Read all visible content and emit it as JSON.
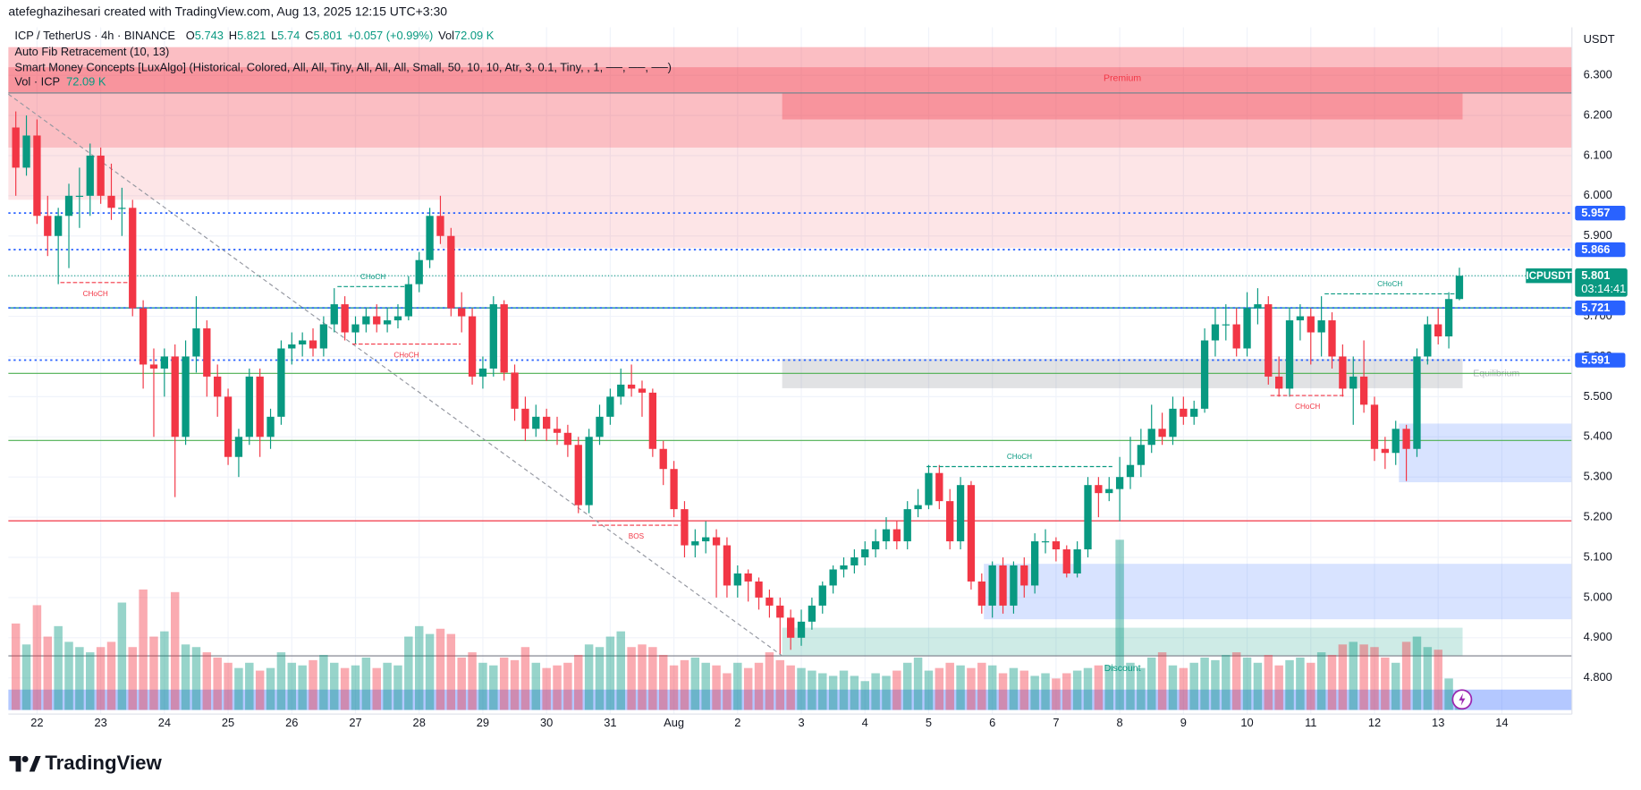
{
  "header": {
    "attribution": "atefeghazihesari created with TradingView.com, Aug 13, 2025 12:15 UTC+3:30",
    "currency": "USDT"
  },
  "legend": {
    "symbol": "ICP / TetherUS · 4h · BINANCE",
    "fields": [
      {
        "label": "O",
        "value": 5.743
      },
      {
        "label": "H",
        "value": 5.821
      },
      {
        "label": "L",
        "value": 5.74
      },
      {
        "label": "C",
        "value": 5.801
      }
    ],
    "change": "+0.057 (+0.99%)",
    "volume": {
      "label": "Vol",
      "value": "72.09 K"
    }
  },
  "indicators": {
    "fib": "Auto Fib Retracement (10, 13)",
    "smc": "Smart Money Concepts [LuxAlgo] (Historical, Colored, All, All, Tiny, All, All, All, Small, 50, 10, 10, Atr, 3, 0.1, Tiny, , 1, ──, ──, ──)",
    "vol": {
      "label": "Vol · ICP",
      "value": "72.09 K"
    }
  },
  "footer": {
    "brand": "TradingView"
  },
  "chart_data": {
    "type": "candlestick",
    "up_color": "#089981",
    "down_color": "#f23645",
    "volume_up_color": "rgba(8,153,129,0.42)",
    "volume_down_color": "rgba(242,54,69,0.42)",
    "grid": true,
    "xlim": [
      -0.7,
      146.6
    ],
    "ylim": [
      4.71,
      6.37
    ],
    "volume_lim": [
      0,
      700
    ],
    "yticks": [
      {
        "value": 4.8,
        "label": "4.800"
      },
      {
        "value": 4.9,
        "label": "4.900"
      },
      {
        "value": 5.0,
        "label": "5.000"
      },
      {
        "value": 5.1,
        "label": "5.100"
      },
      {
        "value": 5.2,
        "label": "5.200"
      },
      {
        "value": 5.3,
        "label": "5.300"
      },
      {
        "value": 5.4,
        "label": "5.400"
      },
      {
        "value": 5.5,
        "label": "5.500"
      },
      {
        "value": 5.6,
        "label": "5.600"
      },
      {
        "value": 5.7,
        "label": "5.700"
      },
      {
        "value": 5.8,
        "label": "5.800"
      },
      {
        "value": 5.9,
        "label": "5.900"
      },
      {
        "value": 6.0,
        "label": "6.000"
      },
      {
        "value": 6.1,
        "label": "6.100"
      },
      {
        "value": 6.2,
        "label": "6.200"
      },
      {
        "value": 6.3,
        "label": "6.300"
      }
    ],
    "xticks": [
      {
        "value": 2,
        "label": "22"
      },
      {
        "value": 8,
        "label": "23"
      },
      {
        "value": 14,
        "label": "24"
      },
      {
        "value": 20,
        "label": "25"
      },
      {
        "value": 26,
        "label": "26"
      },
      {
        "value": 32,
        "label": "27"
      },
      {
        "value": 38,
        "label": "28"
      },
      {
        "value": 44,
        "label": "29"
      },
      {
        "value": 50,
        "label": "30"
      },
      {
        "value": 56,
        "label": "31"
      },
      {
        "value": 62,
        "label": "Aug"
      },
      {
        "value": 68,
        "label": "2"
      },
      {
        "value": 74,
        "label": "3"
      },
      {
        "value": 80,
        "label": "4"
      },
      {
        "value": 86,
        "label": "5"
      },
      {
        "value": 92,
        "label": "6"
      },
      {
        "value": 98,
        "label": "7"
      },
      {
        "value": 104,
        "label": "8"
      },
      {
        "value": 110,
        "label": "9"
      },
      {
        "value": 116,
        "label": "10"
      },
      {
        "value": 122,
        "label": "11"
      },
      {
        "value": 128,
        "label": "12"
      },
      {
        "value": 134,
        "label": "13"
      },
      {
        "value": 140,
        "label": "14"
      }
    ],
    "ohlc": [
      [
        6.17,
        6.21,
        6.0,
        6.07
      ],
      [
        6.07,
        6.2,
        6.05,
        6.15
      ],
      [
        6.15,
        6.19,
        5.93,
        5.95
      ],
      [
        5.95,
        6.0,
        5.85,
        5.9
      ],
      [
        5.9,
        5.97,
        5.78,
        5.95
      ],
      [
        5.95,
        6.03,
        5.82,
        6.0
      ],
      [
        6.0,
        6.07,
        5.92,
        6.0
      ],
      [
        6.0,
        6.13,
        5.95,
        6.1
      ],
      [
        6.1,
        6.12,
        5.98,
        6.0
      ],
      [
        6.0,
        6.08,
        5.94,
        5.97
      ],
      [
        5.97,
        6.02,
        5.9,
        5.97
      ],
      [
        5.97,
        5.99,
        5.7,
        5.72
      ],
      [
        5.72,
        5.74,
        5.52,
        5.58
      ],
      [
        5.58,
        5.62,
        5.4,
        5.57
      ],
      [
        5.57,
        5.62,
        5.5,
        5.6
      ],
      [
        5.6,
        5.63,
        5.25,
        5.4
      ],
      [
        5.4,
        5.64,
        5.38,
        5.6
      ],
      [
        5.6,
        5.75,
        5.56,
        5.67
      ],
      [
        5.67,
        5.69,
        5.5,
        5.55
      ],
      [
        5.55,
        5.58,
        5.45,
        5.5
      ],
      [
        5.5,
        5.52,
        5.33,
        5.35
      ],
      [
        5.35,
        5.42,
        5.3,
        5.4
      ],
      [
        5.4,
        5.57,
        5.38,
        5.55
      ],
      [
        5.55,
        5.57,
        5.35,
        5.4
      ],
      [
        5.4,
        5.47,
        5.37,
        5.45
      ],
      [
        5.45,
        5.64,
        5.43,
        5.62
      ],
      [
        5.62,
        5.66,
        5.58,
        5.63
      ],
      [
        5.63,
        5.66,
        5.6,
        5.64
      ],
      [
        5.64,
        5.67,
        5.6,
        5.62
      ],
      [
        5.62,
        5.7,
        5.6,
        5.68
      ],
      [
        5.68,
        5.77,
        5.66,
        5.73
      ],
      [
        5.73,
        5.75,
        5.64,
        5.66
      ],
      [
        5.66,
        5.7,
        5.63,
        5.68
      ],
      [
        5.68,
        5.72,
        5.66,
        5.7
      ],
      [
        5.7,
        5.73,
        5.66,
        5.68
      ],
      [
        5.68,
        5.72,
        5.66,
        5.69
      ],
      [
        5.69,
        5.73,
        5.67,
        5.7
      ],
      [
        5.7,
        5.8,
        5.69,
        5.78
      ],
      [
        5.78,
        5.86,
        5.76,
        5.84
      ],
      [
        5.84,
        5.97,
        5.82,
        5.95
      ],
      [
        5.95,
        6.0,
        5.88,
        5.9
      ],
      [
        5.9,
        5.92,
        5.7,
        5.72
      ],
      [
        5.72,
        5.76,
        5.66,
        5.7
      ],
      [
        5.7,
        5.72,
        5.53,
        5.55
      ],
      [
        5.55,
        5.6,
        5.52,
        5.57
      ],
      [
        5.57,
        5.75,
        5.55,
        5.73
      ],
      [
        5.73,
        5.74,
        5.54,
        5.56
      ],
      [
        5.56,
        5.58,
        5.44,
        5.47
      ],
      [
        5.47,
        5.5,
        5.39,
        5.42
      ],
      [
        5.42,
        5.48,
        5.4,
        5.45
      ],
      [
        5.45,
        5.47,
        5.39,
        5.42
      ],
      [
        5.42,
        5.45,
        5.38,
        5.41
      ],
      [
        5.41,
        5.43,
        5.35,
        5.38
      ],
      [
        5.38,
        5.4,
        5.21,
        5.23
      ],
      [
        5.23,
        5.42,
        5.21,
        5.4
      ],
      [
        5.4,
        5.48,
        5.38,
        5.45
      ],
      [
        5.45,
        5.52,
        5.43,
        5.5
      ],
      [
        5.5,
        5.57,
        5.48,
        5.53
      ],
      [
        5.53,
        5.58,
        5.5,
        5.52
      ],
      [
        5.52,
        5.54,
        5.45,
        5.51
      ],
      [
        5.51,
        5.52,
        5.35,
        5.37
      ],
      [
        5.37,
        5.39,
        5.28,
        5.32
      ],
      [
        5.32,
        5.34,
        5.2,
        5.22
      ],
      [
        5.22,
        5.24,
        5.1,
        5.13
      ],
      [
        5.13,
        5.17,
        5.1,
        5.14
      ],
      [
        5.14,
        5.19,
        5.11,
        5.15
      ],
      [
        5.15,
        5.17,
        5.0,
        5.13
      ],
      [
        5.13,
        5.15,
        5.0,
        5.03
      ],
      [
        5.03,
        5.08,
        5.0,
        5.06
      ],
      [
        5.06,
        5.07,
        4.99,
        5.04
      ],
      [
        5.04,
        5.05,
        4.97,
        5.0
      ],
      [
        5.0,
        5.02,
        4.95,
        4.98
      ],
      [
        4.98,
        5.0,
        4.86,
        4.95
      ],
      [
        4.95,
        4.97,
        4.87,
        4.9
      ],
      [
        4.9,
        4.97,
        4.88,
        4.94
      ],
      [
        4.94,
        5.0,
        4.92,
        4.98
      ],
      [
        4.98,
        5.04,
        4.96,
        5.03
      ],
      [
        5.03,
        5.08,
        5.01,
        5.07
      ],
      [
        5.07,
        5.1,
        5.05,
        5.08
      ],
      [
        5.08,
        5.12,
        5.06,
        5.1
      ],
      [
        5.1,
        5.14,
        5.08,
        5.12
      ],
      [
        5.12,
        5.17,
        5.1,
        5.14
      ],
      [
        5.14,
        5.2,
        5.12,
        5.17
      ],
      [
        5.17,
        5.19,
        5.12,
        5.14
      ],
      [
        5.14,
        5.24,
        5.12,
        5.22
      ],
      [
        5.22,
        5.27,
        5.2,
        5.23
      ],
      [
        5.23,
        5.33,
        5.22,
        5.31
      ],
      [
        5.31,
        5.33,
        5.22,
        5.24
      ],
      [
        5.24,
        5.27,
        5.12,
        5.14
      ],
      [
        5.14,
        5.3,
        5.12,
        5.28
      ],
      [
        5.28,
        5.29,
        5.02,
        5.04
      ],
      [
        5.04,
        5.06,
        4.96,
        4.98
      ],
      [
        4.98,
        5.09,
        4.95,
        5.08
      ],
      [
        5.08,
        5.1,
        4.96,
        4.98
      ],
      [
        4.98,
        5.09,
        4.96,
        5.08
      ],
      [
        5.08,
        5.1,
        5.0,
        5.03
      ],
      [
        5.03,
        5.16,
        5.01,
        5.14
      ],
      [
        5.14,
        5.17,
        5.11,
        5.14
      ],
      [
        5.14,
        5.15,
        5.09,
        5.12
      ],
      [
        5.12,
        5.13,
        5.05,
        5.06
      ],
      [
        5.06,
        5.14,
        5.05,
        5.12
      ],
      [
        5.12,
        5.3,
        5.1,
        5.28
      ],
      [
        5.28,
        5.3,
        5.2,
        5.26
      ],
      [
        5.26,
        5.3,
        5.24,
        5.27
      ],
      [
        5.27,
        5.35,
        5.19,
        5.3
      ],
      [
        5.3,
        5.4,
        5.27,
        5.33
      ],
      [
        5.33,
        5.42,
        5.3,
        5.38
      ],
      [
        5.38,
        5.48,
        5.36,
        5.42
      ],
      [
        5.42,
        5.46,
        5.38,
        5.4
      ],
      [
        5.4,
        5.5,
        5.38,
        5.47
      ],
      [
        5.47,
        5.5,
        5.43,
        5.45
      ],
      [
        5.45,
        5.49,
        5.43,
        5.47
      ],
      [
        5.47,
        5.67,
        5.46,
        5.64
      ],
      [
        5.64,
        5.72,
        5.6,
        5.68
      ],
      [
        5.68,
        5.73,
        5.64,
        5.68
      ],
      [
        5.68,
        5.72,
        5.6,
        5.62
      ],
      [
        5.62,
        5.76,
        5.6,
        5.72
      ],
      [
        5.72,
        5.77,
        5.68,
        5.73
      ],
      [
        5.73,
        5.75,
        5.53,
        5.55
      ],
      [
        5.55,
        5.6,
        5.5,
        5.52
      ],
      [
        5.52,
        5.72,
        5.5,
        5.69
      ],
      [
        5.69,
        5.73,
        5.64,
        5.7
      ],
      [
        5.7,
        5.72,
        5.58,
        5.66
      ],
      [
        5.66,
        5.75,
        5.6,
        5.69
      ],
      [
        5.69,
        5.71,
        5.57,
        5.6
      ],
      [
        5.6,
        5.63,
        5.5,
        5.52
      ],
      [
        5.52,
        5.6,
        5.43,
        5.55
      ],
      [
        5.55,
        5.64,
        5.46,
        5.48
      ],
      [
        5.48,
        5.5,
        5.34,
        5.37
      ],
      [
        5.37,
        5.4,
        5.32,
        5.36
      ],
      [
        5.36,
        5.44,
        5.33,
        5.42
      ],
      [
        5.42,
        5.43,
        5.29,
        5.37
      ],
      [
        5.37,
        5.62,
        5.35,
        5.6
      ],
      [
        5.6,
        5.7,
        5.58,
        5.68
      ],
      [
        5.68,
        5.72,
        5.63,
        5.65
      ],
      [
        5.65,
        5.76,
        5.62,
        5.743
      ],
      [
        5.743,
        5.821,
        5.74,
        5.801
      ]
    ],
    "volume": [
      330,
      250,
      400,
      280,
      320,
      260,
      240,
      220,
      240,
      260,
      410,
      240,
      460,
      280,
      300,
      450,
      250,
      240,
      220,
      200,
      180,
      160,
      180,
      150,
      160,
      220,
      180,
      170,
      190,
      210,
      180,
      160,
      170,
      200,
      160,
      180,
      170,
      280,
      320,
      290,
      310,
      290,
      200,
      220,
      180,
      170,
      200,
      190,
      240,
      180,
      160,
      170,
      180,
      210,
      250,
      240,
      280,
      300,
      240,
      250,
      240,
      210,
      170,
      190,
      200,
      180,
      170,
      140,
      180,
      160,
      180,
      220,
      190,
      170,
      160,
      150,
      140,
      130,
      150,
      130,
      110,
      140,
      130,
      150,
      180,
      200,
      150,
      160,
      180,
      170,
      160,
      180,
      170,
      140,
      160,
      150,
      130,
      140,
      120,
      140,
      150,
      160,
      170,
      170,
      650,
      180,
      160,
      200,
      220,
      170,
      160,
      180,
      200,
      190,
      210,
      220,
      200,
      180,
      210,
      170,
      190,
      200,
      180,
      220,
      210,
      250,
      260,
      250,
      240,
      200,
      180,
      260,
      280,
      240,
      230,
      120,
      72.09
    ],
    "zones": [
      {
        "from": -0.7,
        "to": 146.6,
        "low": 6.12,
        "high": 6.37,
        "color": "rgba(242,54,69,0.32)"
      },
      {
        "from": -0.7,
        "to": 146.6,
        "low": 6.258,
        "high": 6.32,
        "color": "rgba(242,54,69,0.3)"
      },
      {
        "from": -0.7,
        "to": 146.6,
        "low": 5.99,
        "high": 6.12,
        "color": "rgba(242,54,69,0.13)"
      },
      {
        "from": 40,
        "to": 146.6,
        "low": 5.87,
        "high": 5.99,
        "color": "rgba(242,54,69,0.13)"
      },
      {
        "from": 72.2,
        "to": 136.3,
        "low": 6.19,
        "high": 6.256,
        "color": "rgba(242,54,69,0.3)",
        "label": "Premium",
        "label_side": "top",
        "label_color": "#f23645"
      },
      {
        "from": 72.2,
        "to": 136.3,
        "low": 5.521,
        "high": 5.594,
        "color": "rgba(120,123,134,0.22)",
        "label": "Equilibrium",
        "label_side": "right",
        "label_color": "#b2b5be"
      },
      {
        "from": 72.2,
        "to": 136.3,
        "low": 4.855,
        "high": 4.925,
        "color": "rgba(8,153,129,0.2)",
        "label": "Discount",
        "label_side": "bottom",
        "label_color": "#089981"
      },
      {
        "from": 130.3,
        "to": 146.6,
        "low": 5.287,
        "high": 5.433,
        "color": "rgba(41,98,255,0.18)"
      },
      {
        "from": 91.2,
        "to": 146.6,
        "low": 4.946,
        "high": 5.084,
        "color": "rgba(41,98,255,0.18)"
      },
      {
        "from": -0.7,
        "to": 146.6,
        "low": 4.72,
        "high": 4.771,
        "color": "rgba(41,98,255,0.35)"
      }
    ],
    "levels": [
      {
        "value": 6.256,
        "color": "#787b86"
      },
      {
        "value": 5.558,
        "color": "#4caf50"
      },
      {
        "value": 5.391,
        "color": "#4caf50"
      },
      {
        "value": 5.191,
        "color": "#f23645"
      },
      {
        "value": 4.855,
        "color": "#787b86"
      },
      {
        "value": 5.721,
        "color": "#00897b"
      }
    ],
    "price_tags": [
      {
        "value": 5.957,
        "color": "#2962ff"
      },
      {
        "value": 5.866,
        "color": "#2962ff"
      },
      {
        "value": 5.721,
        "color": "#2962ff"
      },
      {
        "value": 5.591,
        "color": "#2962ff"
      }
    ],
    "last_price": {
      "symbol": "ICPUSDT",
      "value": 5.801,
      "countdown": "03:14:41",
      "color": "#089981"
    },
    "fib_line": {
      "from": -0.7,
      "to": 72.2,
      "start": 6.253,
      "end": 4.855
    },
    "structures": [
      {
        "label": "CHoCH",
        "from": 4.2,
        "to": 10.8,
        "value": 5.784,
        "color": "#f23645"
      },
      {
        "label": "CHoCH",
        "from": 30.3,
        "to": 37,
        "value": 5.774,
        "color": "#089981"
      },
      {
        "label": "CHoCH",
        "from": 31.7,
        "to": 41.9,
        "value": 5.631,
        "color": "#f23645"
      },
      {
        "label": "BOS",
        "from": 54.3,
        "to": 62.6,
        "value": 5.18,
        "color": "#f23645"
      },
      {
        "label": "CHoCH",
        "from": 85.8,
        "to": 103.3,
        "value": 5.326,
        "color": "#089981"
      },
      {
        "label": "CHoCH",
        "from": 118.2,
        "to": 125.2,
        "value": 5.503,
        "color": "#f23645"
      },
      {
        "label": "CHoCH",
        "from": 123.3,
        "to": 135.6,
        "value": 5.756,
        "color": "#089981"
      }
    ]
  }
}
